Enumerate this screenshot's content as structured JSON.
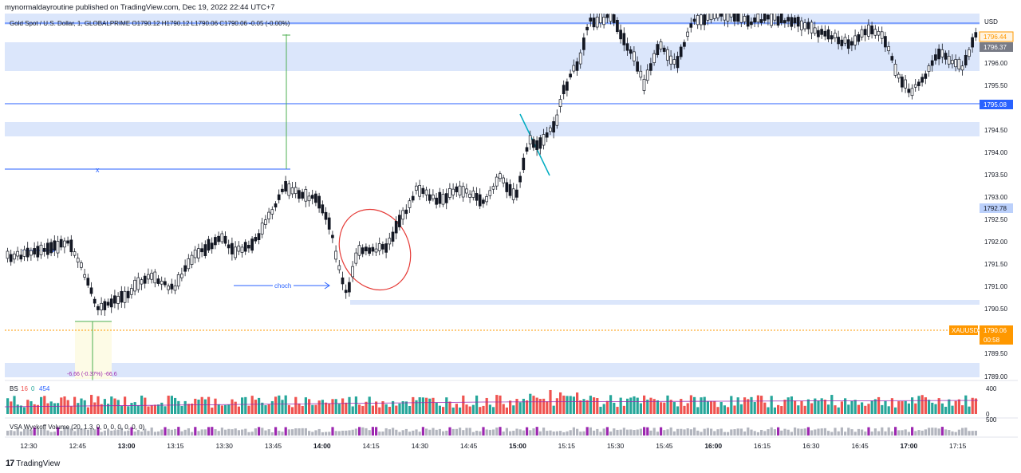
{
  "publisher_line": "mynormaldayroutine published on TradingView.com, Dec 19, 2022 22:44 UTC+7",
  "symbol_header": "Gold Spot / U.S. Dollar, 1, GLOBALPRIME  O1790.12  H1790.12  L1790.06  C1790.06  -0.05 (-0.00%)",
  "currency": "USD",
  "price_axis": [
    "1796.00",
    "1795.50",
    "1794.50",
    "1794.00",
    "1793.50",
    "1793.00",
    "1792.50",
    "1792.00",
    "1791.50",
    "1791.00",
    "1790.50",
    "1789.50",
    "1789.00"
  ],
  "price_tags": {
    "tag_orange_top": "1796.44",
    "tag_gray": "1796.37",
    "tag_blue": "1795.08",
    "tag_lightblue": "1792.78",
    "symbol_tag": "XAUUSD",
    "last_price": "1790.06",
    "countdown": "00:58"
  },
  "annotations": {
    "choch_label": "choch",
    "x_label": "x",
    "measure_label": "-6.66 (-0.37%) -66.6"
  },
  "volume_pane": {
    "label": "BS",
    "v1": "16",
    "v2": "0",
    "v3": "454",
    "scale_top": "400",
    "scale_bottom": "0"
  },
  "vsa_pane": {
    "label": "VSA Wyckoff Volume (20, 1.3, 0, 0, 0, 0, 0, 0, 0)",
    "scale": "500"
  },
  "time_axis": [
    "12:30",
    "12:45",
    "13:00",
    "13:15",
    "13:30",
    "13:45",
    "14:00",
    "14:15",
    "14:30",
    "14:45",
    "15:00",
    "15:15",
    "15:30",
    "15:45",
    "16:00",
    "16:15",
    "16:30",
    "16:45",
    "17:00",
    "17:15"
  ],
  "branding": "TradingView",
  "colors": {
    "bull_candle": "#ffffff",
    "bear_candle": "#131722",
    "zone_fill": "#dbe6fb",
    "accent_blue": "#2962ff",
    "volume_up": "#26a69a",
    "volume_down": "#ef5350",
    "vsa_purple": "#9c27b0",
    "last_price_orange": "#ff9800"
  }
}
